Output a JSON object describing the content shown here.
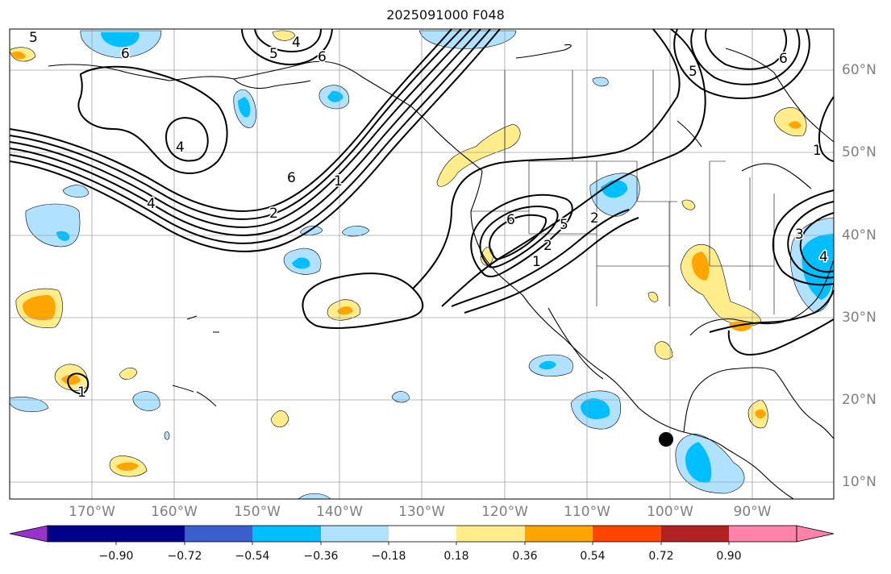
{
  "title": "2025091000 F048",
  "longitude_labels": [
    "170°W",
    "160°W",
    "150°W",
    "140°W",
    "130°W",
    "120°W",
    "110°W",
    "100°W",
    "90°W"
  ],
  "latitude_labels": [
    "60°N",
    "50°N",
    "40°N",
    "30°N",
    "20°N",
    "10°N"
  ],
  "colorbar": {
    "tick_labels": [
      "−0.90",
      "−0.72",
      "−0.54",
      "−0.36",
      "−0.18",
      "0.18",
      "0.36",
      "0.54",
      "0.72",
      "0.90"
    ],
    "colors": [
      "#9932cc",
      "#00008b",
      "#3a5fcd",
      "#00bfff",
      "#b0e2ff",
      "#ffffff",
      "#ffec8b",
      "#ffa500",
      "#ff4500",
      "#b22222",
      "#ff82ab"
    ]
  },
  "contour_labels": [
    "5",
    "6",
    "4",
    "5",
    "6",
    "6",
    "5",
    "4",
    "4",
    "6",
    "1",
    "2",
    "6",
    "5",
    "2",
    "2",
    "1",
    "1",
    "3",
    "4",
    "1"
  ],
  "colors": {
    "gridline": "#a0a0a0",
    "contour": "#000000",
    "coast": "#000000",
    "marker": "#000000"
  }
}
